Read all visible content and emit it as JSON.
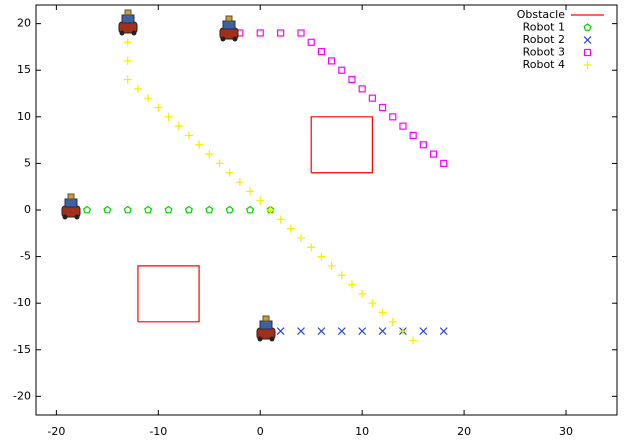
{
  "chart_data": {
    "type": "scatter",
    "xlim": [
      -22,
      35
    ],
    "ylim": [
      -22,
      22
    ],
    "xticks": [
      -20,
      -10,
      0,
      10,
      20,
      30
    ],
    "yticks": [
      -20,
      -15,
      -10,
      -5,
      0,
      5,
      10,
      15,
      20
    ],
    "grid": false,
    "legend": "top-right",
    "series": [
      {
        "name": "Obstacle",
        "color": "#ff0000",
        "marker": "line",
        "x": [
          5,
          11,
          11,
          5,
          5,
          null,
          -12,
          -6,
          -6,
          -12,
          -12
        ],
        "y": [
          4,
          4,
          10,
          10,
          4,
          null,
          -12,
          -12,
          -6,
          -6,
          -12
        ]
      },
      {
        "name": "Robot 1",
        "color": "#00d000",
        "marker": "pentagon",
        "x": [
          -17,
          -15,
          -13,
          -11,
          -9,
          -7,
          -5,
          -3,
          -1,
          1
        ],
        "y": [
          0,
          0,
          0,
          0,
          0,
          0,
          0,
          0,
          0,
          0
        ]
      },
      {
        "name": "Robot 2",
        "color": "#2040e0",
        "marker": "x",
        "x": [
          2,
          4,
          6,
          8,
          10,
          12,
          14,
          16,
          18
        ],
        "y": [
          -13,
          -13,
          -13,
          -13,
          -13,
          -13,
          -13,
          -13,
          -13
        ]
      },
      {
        "name": "Robot 3",
        "color": "#ff00ff",
        "marker": "square",
        "x": [
          -2,
          0,
          2,
          4,
          5,
          6,
          7,
          8,
          9,
          10,
          11,
          12,
          13,
          14,
          15,
          16,
          17,
          18
        ],
        "y": [
          19,
          19,
          19,
          19,
          18,
          17,
          16,
          15,
          14,
          13,
          12,
          11,
          10,
          9,
          8,
          7,
          6,
          5
        ]
      },
      {
        "name": "Robot 4",
        "color": "#f0f000",
        "marker": "plus",
        "x": [
          -13,
          -13,
          -13,
          -12,
          -11,
          -10,
          -9,
          -8,
          -7,
          -6,
          -5,
          -4,
          -3,
          -2,
          -1,
          0,
          1,
          2,
          3,
          4,
          5,
          6,
          7,
          8,
          9,
          10,
          11,
          12,
          13,
          14,
          15
        ],
        "y": [
          18,
          16,
          14,
          13,
          12,
          11,
          10,
          9,
          8,
          7,
          6,
          5,
          4,
          3,
          2,
          1,
          0,
          -1,
          -2,
          -3,
          -4,
          -5,
          -6,
          -7,
          -8,
          -9,
          -10,
          -11,
          -12,
          -13,
          -14
        ]
      }
    ]
  }
}
